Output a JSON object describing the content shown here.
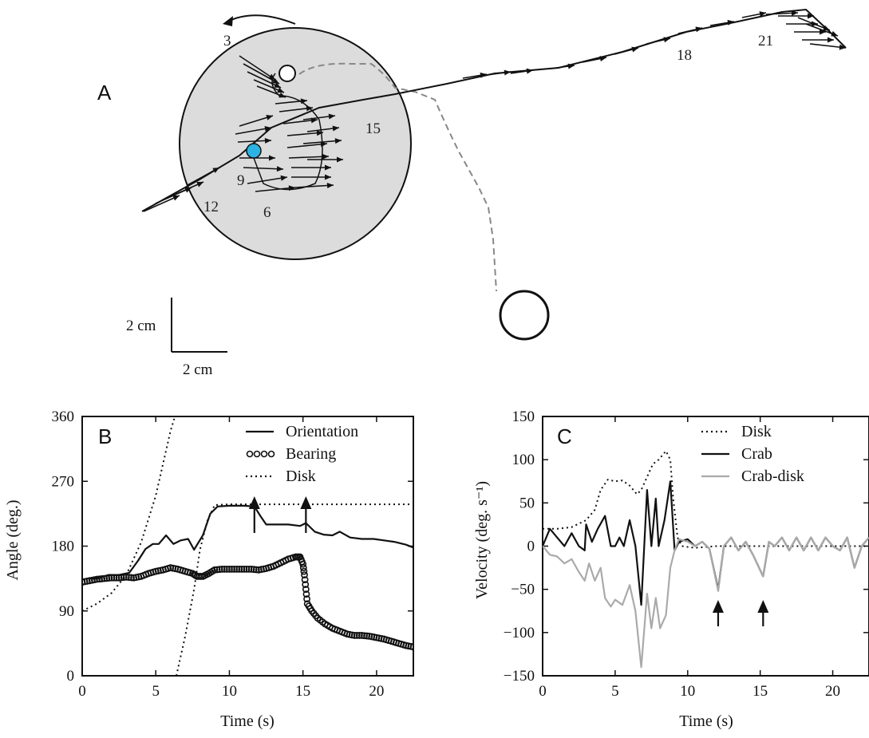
{
  "panel_a": {
    "letter": "A",
    "time_labels": [
      "3",
      "6",
      "9",
      "12",
      "15",
      "18",
      "21"
    ],
    "scale_bar": {
      "vertical": "2 cm",
      "horizontal": "2 cm"
    }
  },
  "chart_data": [
    {
      "type": "line",
      "panel": "B",
      "letter": "B",
      "xlabel": "Time (s)",
      "ylabel": "Angle (deg.)",
      "xlim": [
        0,
        22.5
      ],
      "ylim": [
        0,
        360
      ],
      "xticks": [
        0,
        5,
        10,
        15,
        20
      ],
      "yticks": [
        0,
        90,
        180,
        270,
        360
      ],
      "legend_position": "top-right",
      "series": [
        {
          "name": "Orientation",
          "style": "solid",
          "color": "#111111",
          "points": [
            [
              0.5,
              135
            ],
            [
              1,
              135
            ],
            [
              1.8,
              140
            ],
            [
              2.5,
              140
            ],
            [
              3.2,
              143
            ],
            [
              3.8,
              160
            ],
            [
              4.3,
              176
            ],
            [
              4.8,
              183
            ],
            [
              5.2,
              183
            ],
            [
              5.7,
              195
            ],
            [
              6.2,
              183
            ],
            [
              6.7,
              188
            ],
            [
              7.2,
              190
            ],
            [
              7.6,
              175
            ],
            [
              8.2,
              195
            ],
            [
              8.7,
              225
            ],
            [
              9.2,
              235
            ],
            [
              10,
              236
            ],
            [
              11,
              236
            ],
            [
              11.7,
              235
            ],
            [
              12.1,
              222
            ],
            [
              12.5,
              210
            ],
            [
              13.2,
              210
            ],
            [
              14,
              210
            ],
            [
              14.8,
              208
            ],
            [
              15.2,
              212
            ],
            [
              15.8,
              200
            ],
            [
              16.4,
              196
            ],
            [
              17,
              195
            ],
            [
              17.5,
              200
            ],
            [
              18.2,
              192
            ],
            [
              19,
              190
            ],
            [
              19.8,
              190
            ],
            [
              20.5,
              188
            ],
            [
              21.2,
              186
            ],
            [
              22,
              182
            ],
            [
              22.5,
              178
            ]
          ]
        },
        {
          "name": "Bearing",
          "style": "circles",
          "color": "#111111",
          "points": [
            [
              0,
              130
            ],
            [
              0.5,
              132
            ],
            [
              1,
              134
            ],
            [
              1.5,
              135
            ],
            [
              2,
              136
            ],
            [
              2.5,
              136
            ],
            [
              3,
              137
            ],
            [
              3.5,
              136
            ],
            [
              4,
              138
            ],
            [
              4.5,
              142
            ],
            [
              5,
              145
            ],
            [
              5.5,
              147
            ],
            [
              6,
              150
            ],
            [
              6.5,
              148
            ],
            [
              7,
              145
            ],
            [
              7.5,
              142
            ],
            [
              7.8,
              138
            ],
            [
              8.2,
              138
            ],
            [
              8.6,
              142
            ],
            [
              9,
              147
            ],
            [
              9.5,
              148
            ],
            [
              10,
              148
            ],
            [
              10.5,
              148
            ],
            [
              11,
              148
            ],
            [
              11.5,
              148
            ],
            [
              12,
              147
            ],
            [
              12.5,
              149
            ],
            [
              13,
              152
            ],
            [
              13.5,
              157
            ],
            [
              14,
              162
            ],
            [
              14.5,
              165
            ],
            [
              14.8,
              165
            ],
            [
              15,
              155
            ],
            [
              15.1,
              140
            ],
            [
              15.2,
              120
            ],
            [
              15.3,
              100
            ],
            [
              15.6,
              90
            ],
            [
              16,
              80
            ],
            [
              16.5,
              72
            ],
            [
              17,
              66
            ],
            [
              17.5,
              62
            ],
            [
              18,
              58
            ],
            [
              18.5,
              56
            ],
            [
              19,
              56
            ],
            [
              19.5,
              55
            ],
            [
              20,
              53
            ],
            [
              20.5,
              51
            ],
            [
              21,
              48
            ],
            [
              21.5,
              45
            ],
            [
              22,
              42
            ],
            [
              22.5,
              40
            ]
          ]
        },
        {
          "name": "Disk",
          "style": "dotted",
          "color": "#111111",
          "segments": [
            [
              [
                0,
                90
              ],
              [
                1,
                100
              ],
              [
                2,
                115
              ],
              [
                3,
                140
              ],
              [
                4,
                185
              ],
              [
                5,
                250
              ],
              [
                6,
                340
              ],
              [
                6.3,
                360
              ]
            ],
            [
              [
                6.4,
                0
              ],
              [
                7,
                55
              ],
              [
                7.6,
                120
              ],
              [
                8,
                175
              ],
              [
                8.5,
                215
              ],
              [
                9,
                237
              ],
              [
                10,
                238
              ],
              [
                12,
                238
              ],
              [
                15,
                238
              ],
              [
                18,
                238
              ],
              [
                22.5,
                238
              ]
            ]
          ]
        }
      ],
      "annotation_arrows_at_s": [
        11.7,
        15.2
      ]
    },
    {
      "type": "line",
      "panel": "C",
      "letter": "C",
      "xlabel": "Time (s)",
      "ylabel": "Velocity (deg. s⁻¹)",
      "xlim": [
        0,
        22.5
      ],
      "ylim": [
        -150,
        150
      ],
      "xticks": [
        0,
        5,
        10,
        15,
        20
      ],
      "yticks": [
        -150,
        -100,
        -50,
        0,
        50,
        100,
        150
      ],
      "legend_position": "top-right",
      "series": [
        {
          "name": "Disk",
          "style": "dotted",
          "color": "#111111",
          "points": [
            [
              0,
              20
            ],
            [
              1,
              20
            ],
            [
              2,
              22
            ],
            [
              3,
              30
            ],
            [
              3.6,
              42
            ],
            [
              4,
              65
            ],
            [
              4.5,
              77
            ],
            [
              5,
              75
            ],
            [
              5.5,
              76
            ],
            [
              6,
              70
            ],
            [
              6.5,
              60
            ],
            [
              6.8,
              65
            ],
            [
              7.2,
              80
            ],
            [
              7.6,
              95
            ],
            [
              8,
              100
            ],
            [
              8.5,
              110
            ],
            [
              8.8,
              100
            ],
            [
              9,
              55
            ],
            [
              9.3,
              10
            ],
            [
              9.6,
              0
            ],
            [
              10.5,
              -2
            ],
            [
              12,
              0
            ],
            [
              14,
              0
            ],
            [
              16,
              0
            ],
            [
              18,
              0
            ],
            [
              20,
              0
            ],
            [
              22.5,
              0
            ]
          ]
        },
        {
          "name": "Crab",
          "style": "solid",
          "color": "#111111",
          "points": [
            [
              0,
              0
            ],
            [
              0.5,
              20
            ],
            [
              1,
              10
            ],
            [
              1.5,
              0
            ],
            [
              2,
              15
            ],
            [
              2.5,
              0
            ],
            [
              2.9,
              -5
            ],
            [
              3,
              25
            ],
            [
              3.4,
              5
            ],
            [
              3.8,
              20
            ],
            [
              4.3,
              35
            ],
            [
              4.7,
              0
            ],
            [
              5,
              0
            ],
            [
              5.3,
              10
            ],
            [
              5.6,
              0
            ],
            [
              6,
              30
            ],
            [
              6.4,
              0
            ],
            [
              6.8,
              -68
            ],
            [
              7.2,
              65
            ],
            [
              7.5,
              0
            ],
            [
              7.8,
              55
            ],
            [
              8,
              0
            ],
            [
              8.4,
              30
            ],
            [
              8.8,
              75
            ],
            [
              9.1,
              -5
            ],
            [
              9.4,
              5
            ],
            [
              10,
              8
            ],
            [
              10.5,
              0
            ],
            [
              11,
              5
            ],
            [
              11.5,
              -3
            ],
            [
              12.1,
              -50
            ],
            [
              12.5,
              0
            ],
            [
              13,
              10
            ],
            [
              13.5,
              -5
            ],
            [
              14,
              5
            ],
            [
              14.5,
              -10
            ],
            [
              15.2,
              -35
            ],
            [
              15.6,
              5
            ],
            [
              16,
              0
            ],
            [
              16.5,
              10
            ],
            [
              17,
              -5
            ],
            [
              17.5,
              10
            ],
            [
              18,
              -5
            ],
            [
              18.5,
              10
            ],
            [
              19,
              -5
            ],
            [
              19.5,
              10
            ],
            [
              20,
              0
            ],
            [
              20.5,
              -5
            ],
            [
              21,
              10
            ],
            [
              21.5,
              -25
            ],
            [
              22,
              0
            ],
            [
              22.5,
              10
            ]
          ]
        },
        {
          "name": "Crab-disk",
          "style": "solid",
          "color": "#aaaaaa",
          "points": [
            [
              0,
              0
            ],
            [
              0.5,
              -10
            ],
            [
              1,
              -12
            ],
            [
              1.5,
              -20
            ],
            [
              2,
              -15
            ],
            [
              2.5,
              -30
            ],
            [
              2.9,
              -40
            ],
            [
              3.2,
              -20
            ],
            [
              3.6,
              -40
            ],
            [
              4,
              -25
            ],
            [
              4.3,
              -60
            ],
            [
              4.7,
              -70
            ],
            [
              5,
              -62
            ],
            [
              5.5,
              -68
            ],
            [
              6,
              -45
            ],
            [
              6.4,
              -75
            ],
            [
              6.8,
              -140
            ],
            [
              7.2,
              -55
            ],
            [
              7.5,
              -95
            ],
            [
              7.8,
              -60
            ],
            [
              8.1,
              -95
            ],
            [
              8.5,
              -80
            ],
            [
              8.8,
              -25
            ],
            [
              9.1,
              -5
            ],
            [
              9.4,
              8
            ],
            [
              10,
              5
            ],
            [
              10.5,
              0
            ],
            [
              11,
              5
            ],
            [
              11.5,
              -3
            ],
            [
              12.1,
              -52
            ],
            [
              12.5,
              0
            ],
            [
              13,
              10
            ],
            [
              13.5,
              -5
            ],
            [
              14,
              5
            ],
            [
              14.5,
              -10
            ],
            [
              15.2,
              -35
            ],
            [
              15.6,
              5
            ],
            [
              16,
              0
            ],
            [
              16.5,
              10
            ],
            [
              17,
              -5
            ],
            [
              17.5,
              10
            ],
            [
              18,
              -5
            ],
            [
              18.5,
              10
            ],
            [
              19,
              -5
            ],
            [
              19.5,
              10
            ],
            [
              20,
              0
            ],
            [
              20.5,
              -5
            ],
            [
              21,
              10
            ],
            [
              21.5,
              -25
            ],
            [
              22,
              0
            ],
            [
              22.5,
              10
            ]
          ]
        }
      ],
      "annotation_arrows_at_s": [
        12.1,
        15.2
      ]
    }
  ]
}
